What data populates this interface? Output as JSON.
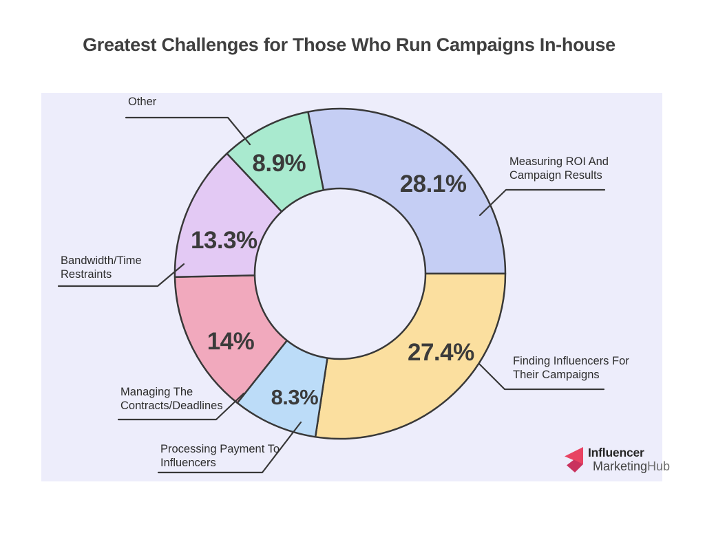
{
  "title": "Greatest Challenges for Those Who Run Campaigns In-house",
  "chart_data": {
    "type": "pie",
    "subtype": "donut",
    "title": "Greatest Challenges for Those Who Run Campaigns In-house",
    "direction": "clockwise",
    "start_angle_deg": -11.2,
    "legend_position": "callout-labels",
    "categories": [
      "Measuring ROI And Campaign Results",
      "Finding Influencers For Their Campaigns",
      "Processing Payment To Influencers",
      "Managing The Contracts/Deadlines",
      "Bandwidth/Time Restraints",
      "Other"
    ],
    "values": [
      28.1,
      27.4,
      8.3,
      14,
      13.3,
      8.9
    ],
    "segments": [
      {
        "label": "Measuring ROI And Campaign Results",
        "label_lines": [
          "Measuring ROI And",
          "Campaign Results"
        ],
        "value": 28.1,
        "display": "28.1%",
        "color": "#C5CEF4"
      },
      {
        "label": "Finding Influencers For Their Campaigns",
        "label_lines": [
          "Finding Influencers For",
          "Their Campaigns"
        ],
        "value": 27.4,
        "display": "27.4%",
        "color": "#FBDF9F"
      },
      {
        "label": "Processing Payment To Influencers",
        "label_lines": [
          "Processing Payment To",
          "Influencers"
        ],
        "value": 8.3,
        "display": "8.3%",
        "color": "#BCDCF8"
      },
      {
        "label": "Managing The Contracts/Deadlines",
        "label_lines": [
          "Managing The",
          "Contracts/Deadlines"
        ],
        "value": 14,
        "display": "14%",
        "color": "#F1A9BD"
      },
      {
        "label": "Bandwidth/Time Restraints",
        "label_lines": [
          "Bandwidth/Time",
          "Restraints"
        ],
        "value": 13.3,
        "display": "13.3%",
        "color": "#E3C9F4"
      },
      {
        "label": "Other",
        "label_lines": [
          "Other"
        ],
        "value": 8.9,
        "display": "8.9%",
        "color": "#A9EACF"
      }
    ]
  },
  "colors": {
    "outline": "#383838",
    "panel_background": "#EDEDFB",
    "title_text": "#3F3F3F",
    "label_text": "#2D2D2D",
    "value_text": "#3B3B3B",
    "logo_pink_bright": "#E84362",
    "logo_pink_dark": "#C9325E"
  },
  "logo": {
    "line1": "Influencer",
    "line2_part1": "Marketing",
    "line2_part2": "Hub"
  }
}
